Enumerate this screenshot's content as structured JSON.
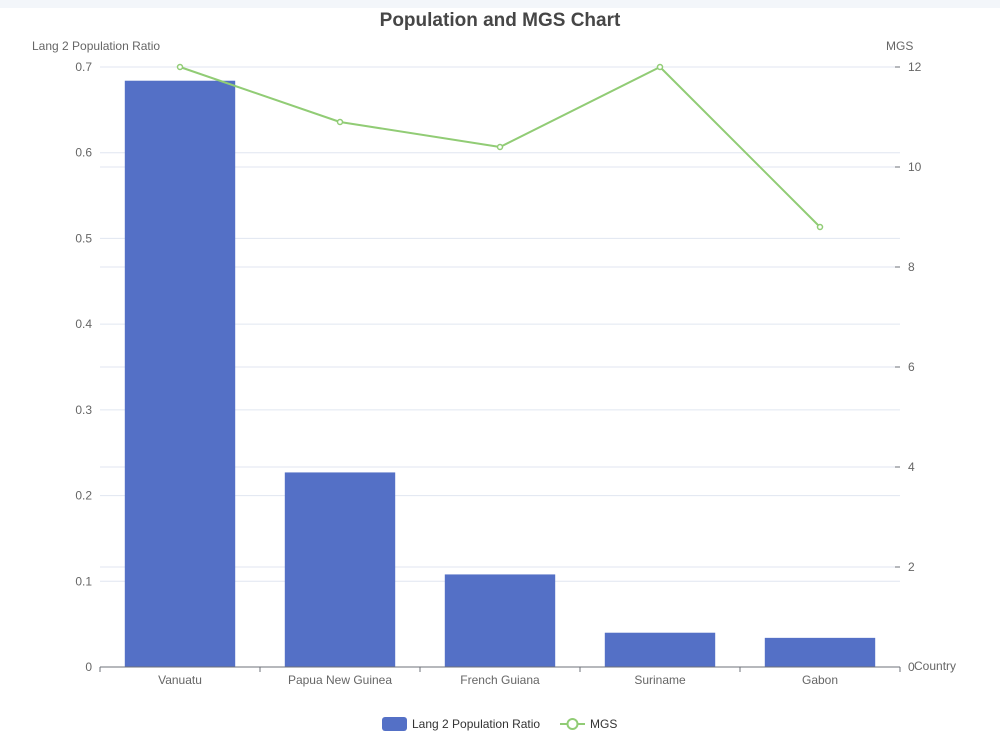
{
  "chart_data": {
    "type": "bar",
    "title": "Population and MGS Chart",
    "xlabel": "Country",
    "ylabel": "Lang 2 Population Ratio",
    "y2label": "MGS",
    "categories": [
      "Vanuatu",
      "Papua New Guinea",
      "French Guiana",
      "Suriname",
      "Gabon"
    ],
    "series": [
      {
        "name": "Lang 2 Population Ratio",
        "type": "bar",
        "axis": "left",
        "color": "#5470c6",
        "values": [
          0.684,
          0.227,
          0.108,
          0.04,
          0.034
        ]
      },
      {
        "name": "MGS",
        "type": "line",
        "axis": "right",
        "color": "#91cc75",
        "values": [
          12.0,
          10.9,
          10.4,
          12.0,
          8.8
        ]
      }
    ],
    "ylim": [
      0,
      0.7
    ],
    "yticks": [
      "0",
      "0.1",
      "0.2",
      "0.3",
      "0.4",
      "0.5",
      "0.6",
      "0.7"
    ],
    "y2lim": [
      0,
      12
    ],
    "y2ticks": [
      "0",
      "2",
      "4",
      "6",
      "8",
      "10",
      "12"
    ],
    "grid": true,
    "legend_position": "bottom-center"
  }
}
